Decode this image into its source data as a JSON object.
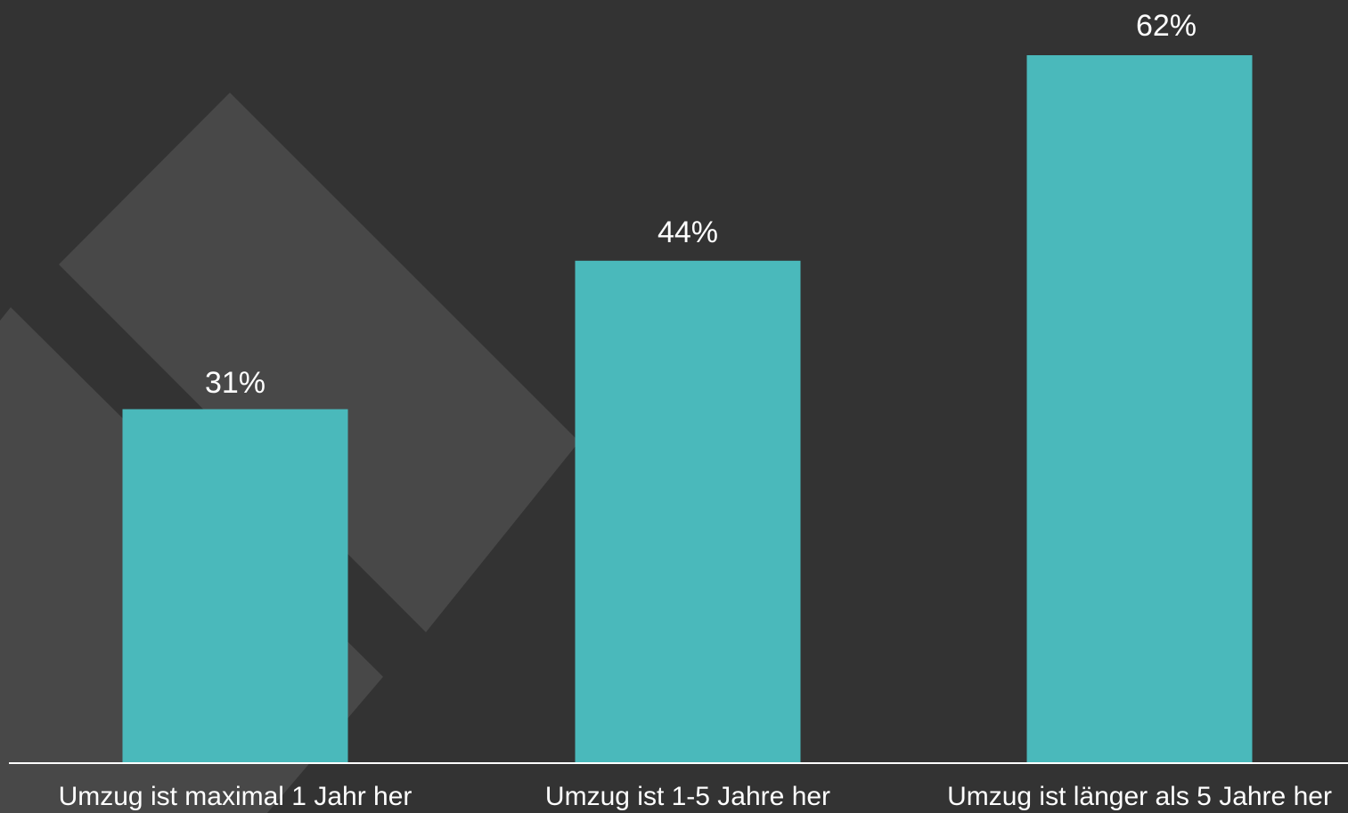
{
  "colors": {
    "background": "#333333",
    "decor_shape": "#484848",
    "bar": "#4ab9bb",
    "text": "#ffffff",
    "baseline": "#ffffff"
  },
  "chart_data": {
    "type": "bar",
    "categories": [
      "Umzug ist maximal 1 Jahr her",
      "Umzug ist 1-5 Jahre her",
      "Umzug ist länger als 5 Jahre her"
    ],
    "values": [
      31,
      44,
      62
    ],
    "value_labels": [
      "31%",
      "44%",
      "62%"
    ],
    "unit": "%",
    "title": "",
    "xlabel": "",
    "ylabel": "",
    "ylim": [
      0,
      62
    ],
    "grid": false,
    "legend": "none",
    "data_labels": "above-bars"
  }
}
